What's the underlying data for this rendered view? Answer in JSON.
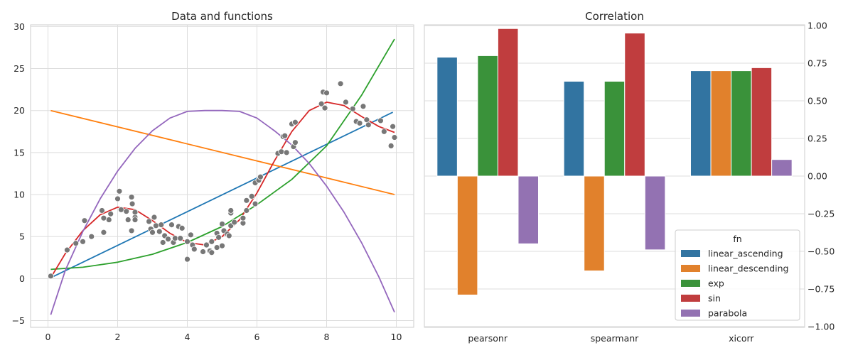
{
  "chart_data": [
    {
      "type": "scatter+line",
      "title": "Data and functions",
      "xlabel": "",
      "ylabel": "",
      "xlim": [
        -0.5,
        10.5
      ],
      "ylim": [
        -5.8,
        30.2
      ],
      "xticks": [
        0,
        2,
        4,
        6,
        8,
        10
      ],
      "yticks": [
        -5,
        0,
        5,
        10,
        15,
        20,
        25,
        30
      ],
      "grid": true,
      "scatter": {
        "color": "#777777",
        "points": [
          [
            0.08,
            0.3
          ],
          [
            0.55,
            3.4
          ],
          [
            0.8,
            4.2
          ],
          [
            1.0,
            4.4
          ],
          [
            1.05,
            6.9
          ],
          [
            1.25,
            5.0
          ],
          [
            1.55,
            8.1
          ],
          [
            1.6,
            5.5
          ],
          [
            1.6,
            7.2
          ],
          [
            1.75,
            7.0
          ],
          [
            1.8,
            7.7
          ],
          [
            2.0,
            9.5
          ],
          [
            2.05,
            10.4
          ],
          [
            2.1,
            8.2
          ],
          [
            2.25,
            8.0
          ],
          [
            2.3,
            7.0
          ],
          [
            2.4,
            5.7
          ],
          [
            2.4,
            9.7
          ],
          [
            2.42,
            8.9
          ],
          [
            2.5,
            7.3
          ],
          [
            2.5,
            7.0
          ],
          [
            2.5,
            7.9
          ],
          [
            2.9,
            6.8
          ],
          [
            2.95,
            5.9
          ],
          [
            3.0,
            5.5
          ],
          [
            3.05,
            7.3
          ],
          [
            3.1,
            6.3
          ],
          [
            3.2,
            5.6
          ],
          [
            3.25,
            6.4
          ],
          [
            3.3,
            4.3
          ],
          [
            3.35,
            5.1
          ],
          [
            3.45,
            4.7
          ],
          [
            3.55,
            6.4
          ],
          [
            3.6,
            4.3
          ],
          [
            3.65,
            4.8
          ],
          [
            3.75,
            6.2
          ],
          [
            3.8,
            4.8
          ],
          [
            3.85,
            6.0
          ],
          [
            4.0,
            4.4
          ],
          [
            4.0,
            2.3
          ],
          [
            4.1,
            5.2
          ],
          [
            4.15,
            4.0
          ],
          [
            4.2,
            3.5
          ],
          [
            4.45,
            3.2
          ],
          [
            4.55,
            4.0
          ],
          [
            4.65,
            3.3
          ],
          [
            4.7,
            3.1
          ],
          [
            4.7,
            4.4
          ],
          [
            4.85,
            3.7
          ],
          [
            4.85,
            5.4
          ],
          [
            4.9,
            4.9
          ],
          [
            5.0,
            3.9
          ],
          [
            5.0,
            6.5
          ],
          [
            5.05,
            5.7
          ],
          [
            5.15,
            5.3
          ],
          [
            5.2,
            5.1
          ],
          [
            5.25,
            6.3
          ],
          [
            5.25,
            7.8
          ],
          [
            5.25,
            8.1
          ],
          [
            5.35,
            6.7
          ],
          [
            5.6,
            6.6
          ],
          [
            5.6,
            7.2
          ],
          [
            5.7,
            8.1
          ],
          [
            5.7,
            9.3
          ],
          [
            5.85,
            9.8
          ],
          [
            5.95,
            8.9
          ],
          [
            5.95,
            11.4
          ],
          [
            6.05,
            11.7
          ],
          [
            6.1,
            12.1
          ],
          [
            6.6,
            14.9
          ],
          [
            6.7,
            15.1
          ],
          [
            6.75,
            16.9
          ],
          [
            6.8,
            17.0
          ],
          [
            6.85,
            15.0
          ],
          [
            7.0,
            18.4
          ],
          [
            7.05,
            15.7
          ],
          [
            7.1,
            16.2
          ],
          [
            7.1,
            18.6
          ],
          [
            7.85,
            20.8
          ],
          [
            7.9,
            22.2
          ],
          [
            7.95,
            20.3
          ],
          [
            8.0,
            22.1
          ],
          [
            8.4,
            23.2
          ],
          [
            8.55,
            21.0
          ],
          [
            8.75,
            20.2
          ],
          [
            8.85,
            18.7
          ],
          [
            8.95,
            18.5
          ],
          [
            9.05,
            20.5
          ],
          [
            9.15,
            18.9
          ],
          [
            9.2,
            18.3
          ],
          [
            9.55,
            18.8
          ],
          [
            9.65,
            17.5
          ],
          [
            9.85,
            15.8
          ],
          [
            9.9,
            18.1
          ],
          [
            9.95,
            16.8
          ]
        ]
      },
      "lines": [
        {
          "key": "linear_ascending",
          "color": "#1f77b4",
          "points": [
            [
              0.08,
              0.1
            ],
            [
              9.9,
              19.8
            ]
          ]
        },
        {
          "key": "linear_descending",
          "color": "#ff7f0e",
          "points": [
            [
              0.08,
              20.0
            ],
            [
              9.95,
              10.0
            ]
          ]
        },
        {
          "key": "exp",
          "color": "#2ca02c",
          "points": [
            [
              0.08,
              1.1
            ],
            [
              1,
              1.35
            ],
            [
              2,
              1.95
            ],
            [
              3,
              2.9
            ],
            [
              4,
              4.3
            ],
            [
              5,
              6.2
            ],
            [
              6,
              8.8
            ],
            [
              7,
              11.8
            ],
            [
              8,
              15.8
            ],
            [
              9,
              21.8
            ],
            [
              9.95,
              28.5
            ]
          ]
        },
        {
          "key": "sin",
          "color": "#d62728",
          "points": [
            [
              0.08,
              0.1
            ],
            [
              0.5,
              3.0
            ],
            [
              1,
              5.7
            ],
            [
              1.5,
              7.6
            ],
            [
              2,
              8.5
            ],
            [
              2.5,
              8.2
            ],
            [
              3,
              6.9
            ],
            [
              3.5,
              5.4
            ],
            [
              4,
              4.3
            ],
            [
              4.5,
              4.0
            ],
            [
              5,
              5.0
            ],
            [
              5.5,
              7.0
            ],
            [
              6,
              10.2
            ],
            [
              6.5,
              14.0
            ],
            [
              7,
              17.5
            ],
            [
              7.5,
              20.0
            ],
            [
              8,
              21.0
            ],
            [
              8.5,
              20.6
            ],
            [
              9,
              19.3
            ],
            [
              9.5,
              18.1
            ],
            [
              9.95,
              17.4
            ]
          ]
        },
        {
          "key": "parabola",
          "color": "#9467bd",
          "points": [
            [
              0.08,
              -4.3
            ],
            [
              0.5,
              1.0
            ],
            [
              1,
              5.6
            ],
            [
              1.5,
              9.5
            ],
            [
              2,
              12.8
            ],
            [
              2.5,
              15.5
            ],
            [
              3,
              17.6
            ],
            [
              3.5,
              19.1
            ],
            [
              4,
              19.9
            ],
            [
              4.5,
              20.0
            ],
            [
              5,
              20.0
            ],
            [
              5.5,
              19.9
            ],
            [
              6,
              19.1
            ],
            [
              6.5,
              17.6
            ],
            [
              7,
              15.9
            ],
            [
              7.5,
              13.7
            ],
            [
              8,
              11.0
            ],
            [
              8.5,
              7.9
            ],
            [
              9,
              4.3
            ],
            [
              9.5,
              0.2
            ],
            [
              9.95,
              -4.0
            ]
          ]
        }
      ]
    },
    {
      "type": "bar",
      "title": "Correlation",
      "xlabel": "",
      "ylabel": "",
      "categories": [
        "pearsonr",
        "spearmanr",
        "xicorr"
      ],
      "ylim": [
        -1.0,
        1.0
      ],
      "yticks": [
        -1.0,
        -0.75,
        -0.5,
        -0.25,
        0.0,
        0.25,
        0.5,
        0.75,
        1.0
      ],
      "ytick_labels": [
        "−1.00",
        "−0.75",
        "−0.50",
        "−0.25",
        "0.00",
        "0.25",
        "0.50",
        "0.75",
        "1.00"
      ],
      "yaxis_side": "right",
      "grid": true,
      "legend": {
        "title": "fn",
        "position": "lower-right"
      },
      "series": [
        {
          "name": "linear_ascending",
          "color": "#3274a1",
          "values": [
            0.79,
            0.63,
            0.7
          ]
        },
        {
          "name": "linear_descending",
          "color": "#e1812c",
          "values": [
            -0.79,
            -0.63,
            0.7
          ]
        },
        {
          "name": "exp",
          "color": "#3a923a",
          "values": [
            0.8,
            0.63,
            0.7
          ]
        },
        {
          "name": "sin",
          "color": "#c03d3e",
          "values": [
            0.98,
            0.95,
            0.72
          ]
        },
        {
          "name": "parabola",
          "color": "#9372b2",
          "values": [
            -0.45,
            -0.49,
            0.11
          ]
        }
      ]
    }
  ]
}
